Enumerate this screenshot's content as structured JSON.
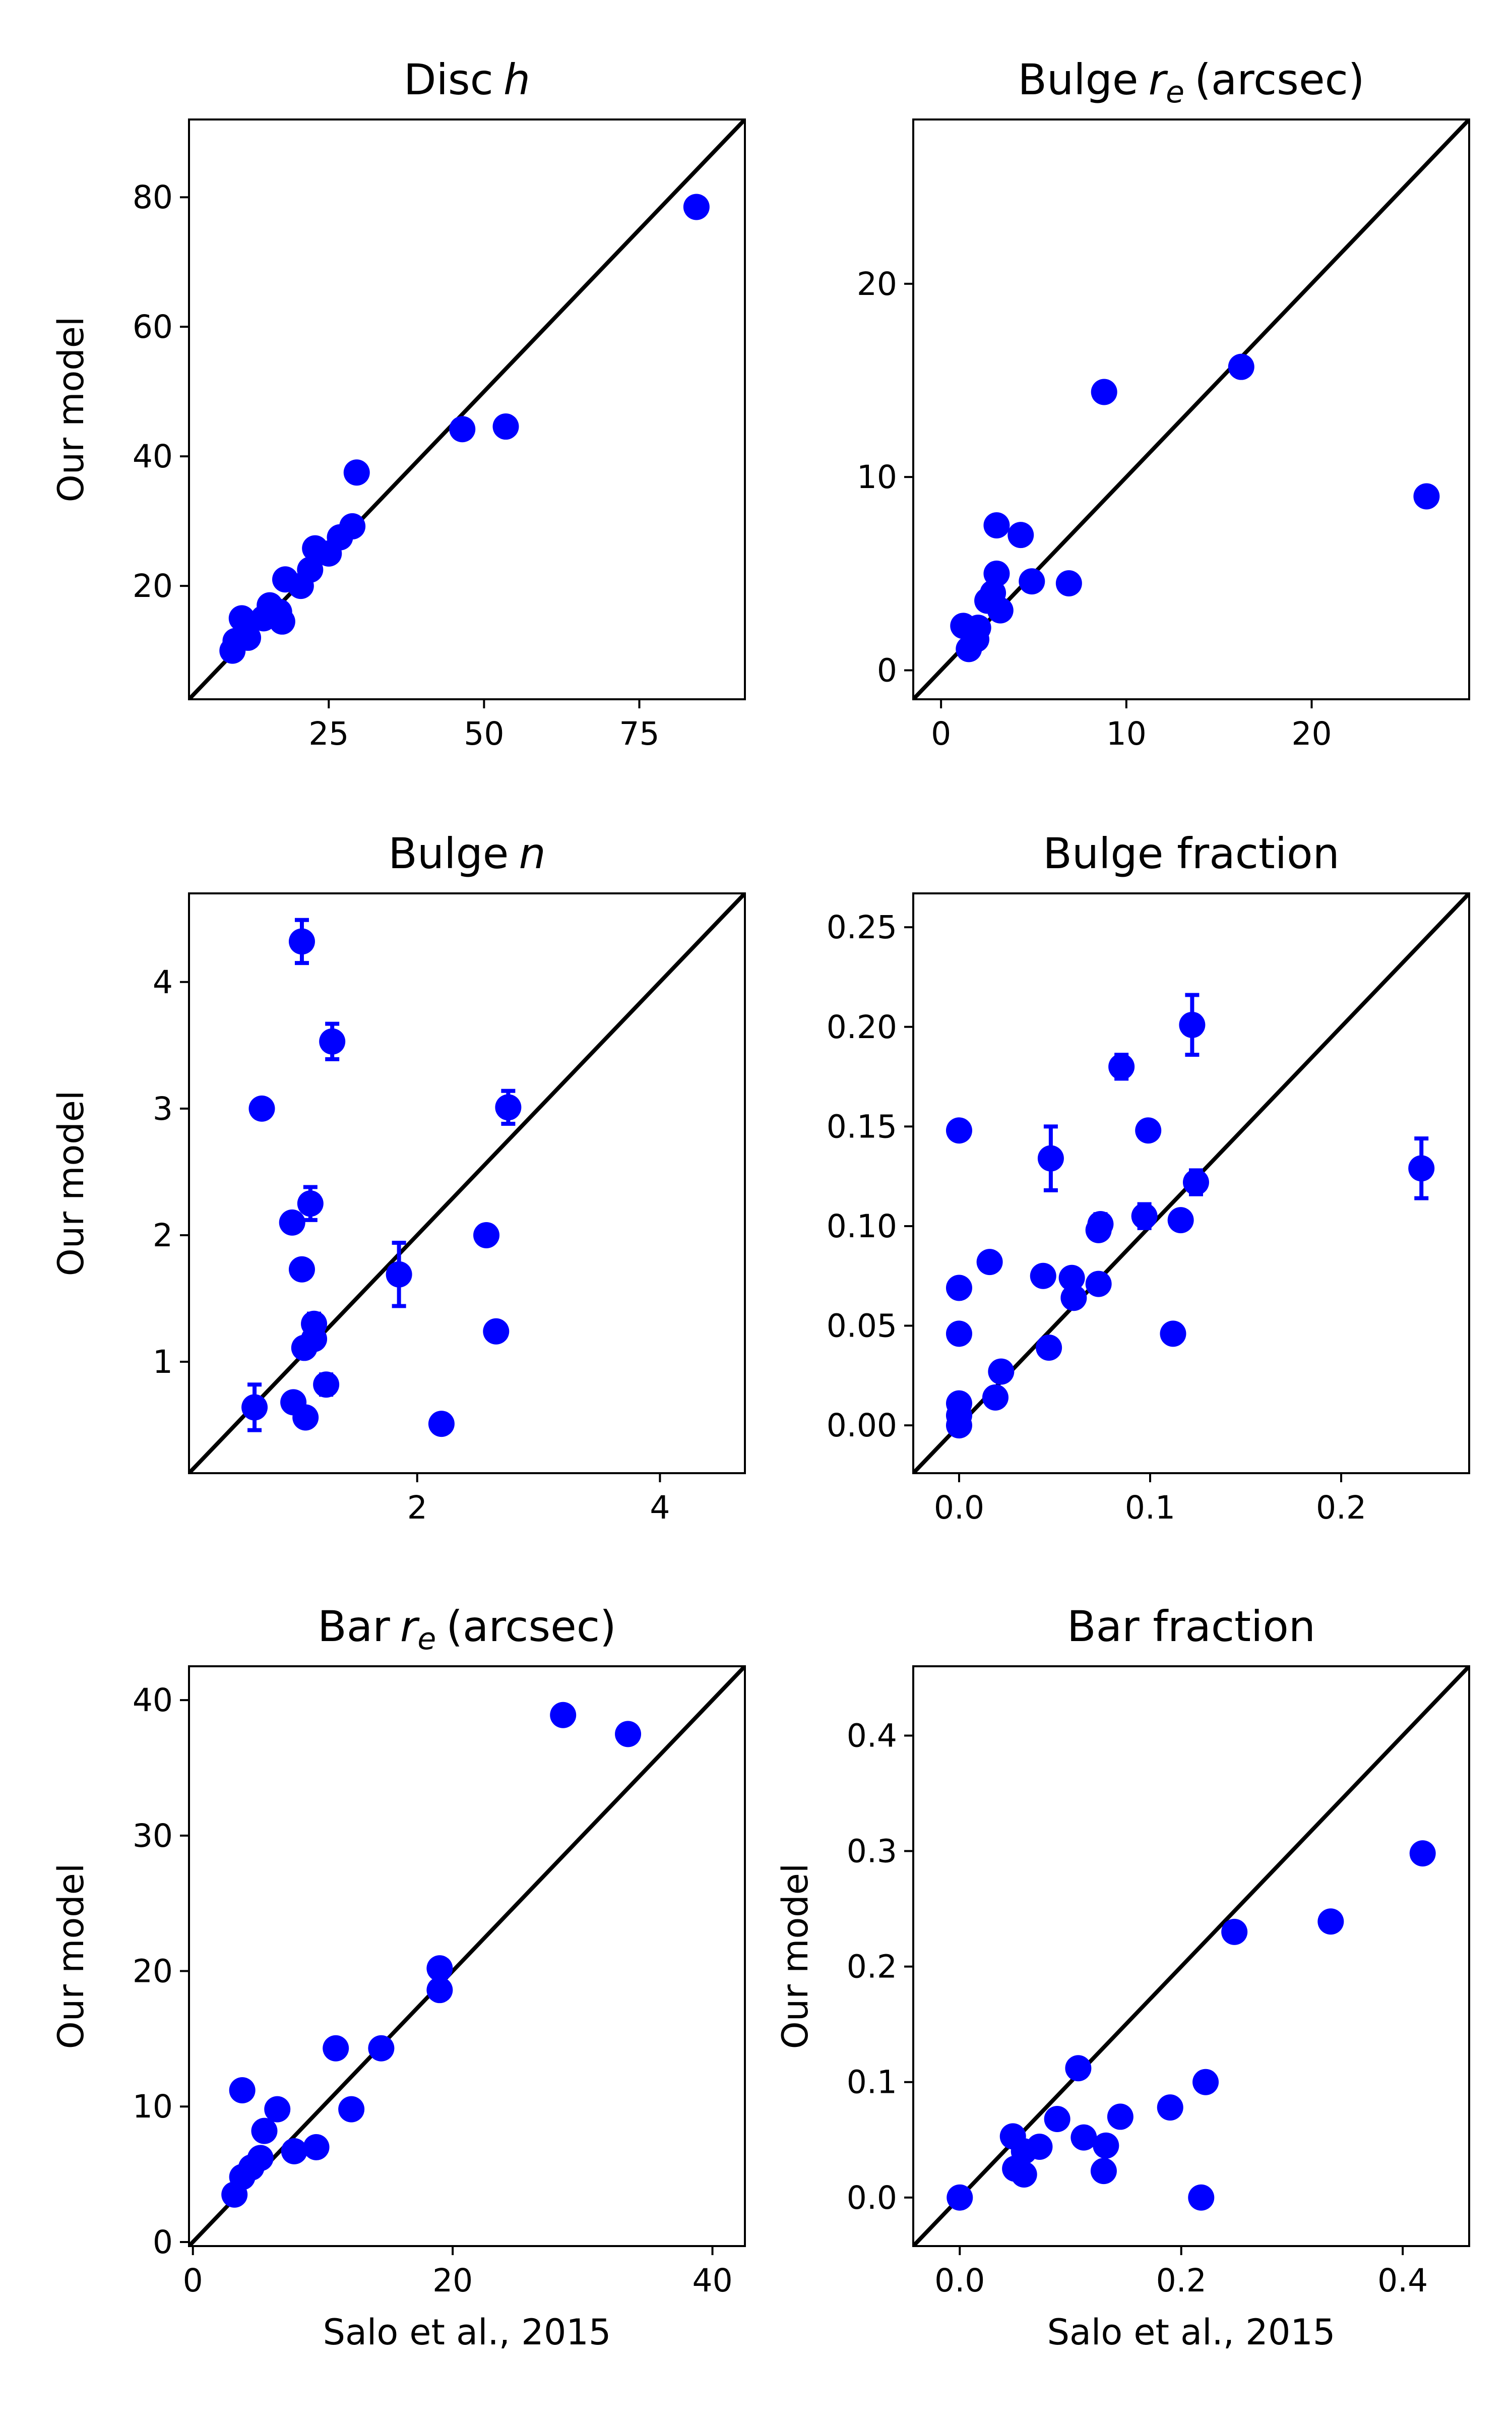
{
  "figure": {
    "xlabel": "Salo et al., 2015",
    "ylabel": "Our model",
    "marker_color": "#0000ff",
    "line_color": "#000000"
  },
  "chart_data": [
    {
      "type": "scatter",
      "title": "Disc",
      "title_math": "h",
      "title_suffix": "",
      "xlim": [
        2.5,
        92
      ],
      "ylim": [
        2.5,
        92
      ],
      "xticks": [
        25,
        50,
        75
      ],
      "xtick_labels": [
        "25",
        "50",
        "75"
      ],
      "yticks": [
        20,
        40,
        60,
        80
      ],
      "ytick_labels": [
        "20",
        "40",
        "60",
        "80"
      ],
      "xlabel": "",
      "ylabel": "Our model",
      "points": [
        {
          "x": 84.2,
          "y": 78.5
        },
        {
          "x": 46.5,
          "y": 44.2
        },
        {
          "x": 53.5,
          "y": 44.6
        },
        {
          "x": 29.5,
          "y": 37.5
        },
        {
          "x": 28.8,
          "y": 29.2
        },
        {
          "x": 26.8,
          "y": 27.5
        },
        {
          "x": 22.8,
          "y": 25.8
        },
        {
          "x": 25.0,
          "y": 25.0
        },
        {
          "x": 22.0,
          "y": 22.5
        },
        {
          "x": 18.0,
          "y": 21.0
        },
        {
          "x": 20.5,
          "y": 20.0
        },
        {
          "x": 15.5,
          "y": 17.0
        },
        {
          "x": 17.0,
          "y": 16.0
        },
        {
          "x": 14.5,
          "y": 15.0
        },
        {
          "x": 17.5,
          "y": 14.5
        },
        {
          "x": 11.0,
          "y": 15.0
        },
        {
          "x": 12.0,
          "y": 12.0
        },
        {
          "x": 10.0,
          "y": 11.5
        },
        {
          "x": 9.5,
          "y": 10.0
        }
      ]
    },
    {
      "type": "scatter",
      "title": "Bulge",
      "title_math": "r",
      "title_sub": "e",
      "title_suffix": "(arcsec)",
      "xlim": [
        -1.5,
        28.5
      ],
      "ylim": [
        -1.5,
        28.5
      ],
      "xticks": [
        0,
        10,
        20
      ],
      "xtick_labels": [
        "0",
        "10",
        "20"
      ],
      "yticks": [
        0,
        10,
        20
      ],
      "ytick_labels": [
        "0",
        "10",
        "20"
      ],
      "xlabel": "",
      "ylabel": "",
      "points": [
        {
          "x": 26.2,
          "y": 9.0
        },
        {
          "x": 16.2,
          "y": 15.7
        },
        {
          "x": 8.8,
          "y": 14.4
        },
        {
          "x": 3.0,
          "y": 7.5
        },
        {
          "x": 4.3,
          "y": 7.0
        },
        {
          "x": 3.0,
          "y": 5.0
        },
        {
          "x": 4.9,
          "y": 4.6
        },
        {
          "x": 6.9,
          "y": 4.5
        },
        {
          "x": 2.8,
          "y": 4.0
        },
        {
          "x": 2.5,
          "y": 3.6
        },
        {
          "x": 3.2,
          "y": 3.1
        },
        {
          "x": 1.2,
          "y": 2.3
        },
        {
          "x": 2.0,
          "y": 2.2
        },
        {
          "x": 1.9,
          "y": 1.6
        },
        {
          "x": 1.5,
          "y": 1.1
        }
      ]
    },
    {
      "type": "scatter",
      "title": "Bulge",
      "title_math": "n",
      "title_suffix": "",
      "xlim": [
        0.12,
        4.7
      ],
      "ylim": [
        0.12,
        4.7
      ],
      "xticks": [
        2,
        4
      ],
      "xtick_labels": [
        "2",
        "4"
      ],
      "yticks": [
        1,
        2,
        3,
        4
      ],
      "ytick_labels": [
        "1",
        "2",
        "3",
        "4"
      ],
      "xlabel": "",
      "ylabel": "Our model",
      "points": [
        {
          "x": 1.05,
          "y": 4.32,
          "err": 0.17
        },
        {
          "x": 1.3,
          "y": 3.53,
          "err": 0.14
        },
        {
          "x": 0.72,
          "y": 3.0
        },
        {
          "x": 2.75,
          "y": 3.01,
          "err": 0.13
        },
        {
          "x": 1.12,
          "y": 2.25,
          "err": 0.13
        },
        {
          "x": 0.97,
          "y": 2.1
        },
        {
          "x": 2.57,
          "y": 2.0
        },
        {
          "x": 1.05,
          "y": 1.73
        },
        {
          "x": 1.85,
          "y": 1.69,
          "err": 0.25
        },
        {
          "x": 1.15,
          "y": 1.3,
          "err": 0.08
        },
        {
          "x": 2.65,
          "y": 1.24
        },
        {
          "x": 1.15,
          "y": 1.18
        },
        {
          "x": 1.07,
          "y": 1.11
        },
        {
          "x": 1.25,
          "y": 0.82,
          "err": 0.08
        },
        {
          "x": 0.98,
          "y": 0.68
        },
        {
          "x": 0.66,
          "y": 0.64,
          "err": 0.18
        },
        {
          "x": 1.08,
          "y": 0.56
        },
        {
          "x": 2.2,
          "y": 0.51
        }
      ]
    },
    {
      "type": "scatter",
      "title": "Bulge fraction",
      "title_math": "",
      "title_suffix": "",
      "xlim": [
        -0.024,
        0.267
      ],
      "ylim": [
        -0.024,
        0.267
      ],
      "xticks": [
        0.0,
        0.1,
        0.2
      ],
      "xtick_labels": [
        "0.0",
        "0.1",
        "0.2"
      ],
      "yticks": [
        0.0,
        0.05,
        0.1,
        0.15,
        0.2,
        0.25
      ],
      "ytick_labels": [
        "0.00",
        "0.05",
        "0.10",
        "0.15",
        "0.20",
        "0.25"
      ],
      "xlabel": "",
      "ylabel": "",
      "points": [
        {
          "x": 0.122,
          "y": 0.201,
          "err": 0.015
        },
        {
          "x": 0.085,
          "y": 0.18,
          "err": 0.006
        },
        {
          "x": 0.0,
          "y": 0.148
        },
        {
          "x": 0.099,
          "y": 0.148
        },
        {
          "x": 0.048,
          "y": 0.134,
          "err": 0.016
        },
        {
          "x": 0.242,
          "y": 0.129,
          "err": 0.015
        },
        {
          "x": 0.124,
          "y": 0.122,
          "err": 0.006
        },
        {
          "x": 0.097,
          "y": 0.105,
          "err": 0.006
        },
        {
          "x": 0.116,
          "y": 0.103
        },
        {
          "x": 0.074,
          "y": 0.101,
          "err": 0.005
        },
        {
          "x": 0.073,
          "y": 0.098
        },
        {
          "x": 0.016,
          "y": 0.082
        },
        {
          "x": 0.044,
          "y": 0.075
        },
        {
          "x": 0.059,
          "y": 0.074
        },
        {
          "x": 0.073,
          "y": 0.071
        },
        {
          "x": 0.0,
          "y": 0.069
        },
        {
          "x": 0.06,
          "y": 0.064
        },
        {
          "x": 0.0,
          "y": 0.046
        },
        {
          "x": 0.112,
          "y": 0.046
        },
        {
          "x": 0.047,
          "y": 0.039
        },
        {
          "x": 0.022,
          "y": 0.027
        },
        {
          "x": 0.019,
          "y": 0.014
        },
        {
          "x": 0.0,
          "y": 0.011
        },
        {
          "x": 0.0,
          "y": 0.005
        },
        {
          "x": 0.0,
          "y": 0.0
        }
      ]
    },
    {
      "type": "scatter",
      "title": "Bar",
      "title_math": "r",
      "title_sub": "e",
      "title_suffix": "(arcsec)",
      "xlim": [
        -0.3,
        42.5
      ],
      "ylim": [
        -0.3,
        42.5
      ],
      "xticks": [
        0,
        20,
        40
      ],
      "xtick_labels": [
        "0",
        "20",
        "40"
      ],
      "yticks": [
        0,
        10,
        20,
        30,
        40
      ],
      "ytick_labels": [
        "0",
        "10",
        "20",
        "30",
        "40"
      ],
      "xlabel": "Salo et al., 2015",
      "ylabel": "Our model",
      "points": [
        {
          "x": 28.5,
          "y": 38.9
        },
        {
          "x": 33.5,
          "y": 37.5
        },
        {
          "x": 19.0,
          "y": 20.2
        },
        {
          "x": 19.0,
          "y": 18.6
        },
        {
          "x": 11.0,
          "y": 14.3
        },
        {
          "x": 14.5,
          "y": 14.3
        },
        {
          "x": 3.8,
          "y": 11.2
        },
        {
          "x": 6.5,
          "y": 9.8
        },
        {
          "x": 12.2,
          "y": 9.8
        },
        {
          "x": 5.5,
          "y": 8.2
        },
        {
          "x": 9.5,
          "y": 7.0
        },
        {
          "x": 7.8,
          "y": 6.7
        },
        {
          "x": 5.2,
          "y": 6.2
        },
        {
          "x": 4.5,
          "y": 5.5
        },
        {
          "x": 3.8,
          "y": 4.8
        },
        {
          "x": 3.2,
          "y": 3.5
        }
      ]
    },
    {
      "type": "scatter",
      "title": "Bar fraction",
      "title_math": "",
      "title_suffix": "",
      "xlim": [
        -0.042,
        0.46
      ],
      "ylim": [
        -0.042,
        0.46
      ],
      "xticks": [
        0.0,
        0.2,
        0.4
      ],
      "xtick_labels": [
        "0.0",
        "0.2",
        "0.4"
      ],
      "yticks": [
        0.0,
        0.1,
        0.2,
        0.3,
        0.4
      ],
      "ytick_labels": [
        "0.0",
        "0.1",
        "0.2",
        "0.3",
        "0.4"
      ],
      "xlabel": "Salo et al., 2015",
      "ylabel": "Our model",
      "points": [
        {
          "x": 0.418,
          "y": 0.298
        },
        {
          "x": 0.335,
          "y": 0.239
        },
        {
          "x": 0.248,
          "y": 0.23
        },
        {
          "x": 0.107,
          "y": 0.112
        },
        {
          "x": 0.222,
          "y": 0.1
        },
        {
          "x": 0.19,
          "y": 0.078
        },
        {
          "x": 0.145,
          "y": 0.07
        },
        {
          "x": 0.088,
          "y": 0.068
        },
        {
          "x": 0.048,
          "y": 0.053
        },
        {
          "x": 0.112,
          "y": 0.052
        },
        {
          "x": 0.132,
          "y": 0.045
        },
        {
          "x": 0.072,
          "y": 0.044
        },
        {
          "x": 0.058,
          "y": 0.04
        },
        {
          "x": 0.05,
          "y": 0.025
        },
        {
          "x": 0.13,
          "y": 0.023
        },
        {
          "x": 0.058,
          "y": 0.02
        },
        {
          "x": 0.0,
          "y": 0.0
        },
        {
          "x": 0.218,
          "y": 0.0
        }
      ]
    }
  ]
}
